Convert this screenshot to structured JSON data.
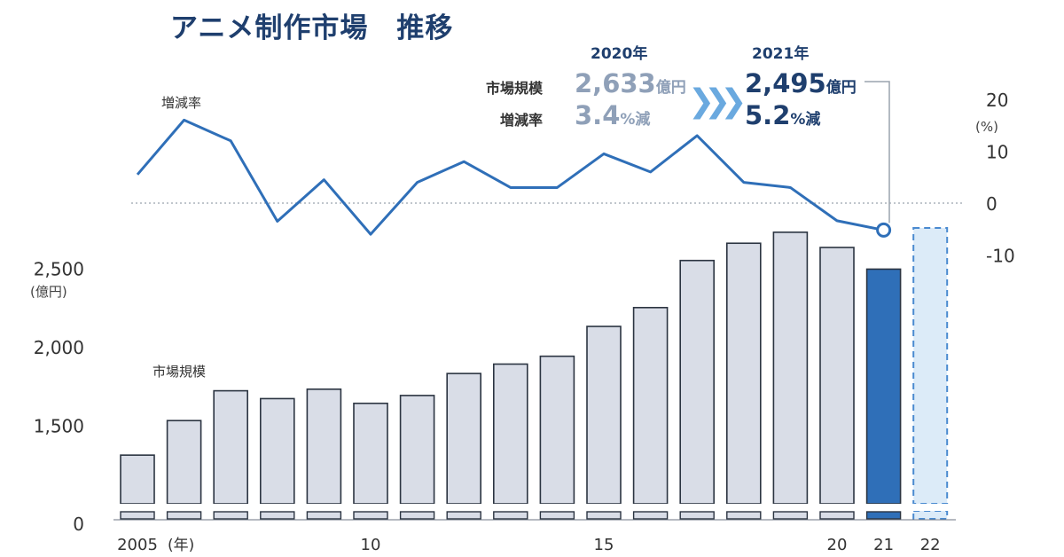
{
  "header": {
    "title": "アニメ制作市場　推移"
  },
  "comparison": {
    "rows": [
      "市場規模",
      "増減率"
    ],
    "prev": {
      "year": "2020年",
      "size": "2,633",
      "size_unit": "億円",
      "rate": "3.4",
      "rate_unit": "%減"
    },
    "curr": {
      "year": "2021年",
      "size": "2,495",
      "size_unit": "億円",
      "rate": "5.2",
      "rate_unit": "%減"
    },
    "arrow": "❯❯❯"
  },
  "chart_data": {
    "type": "bar+line",
    "categories": [
      "2005",
      "2006",
      "2007",
      "2008",
      "2009",
      "2010",
      "2011",
      "2012",
      "2013",
      "2014",
      "2015",
      "2016",
      "2017",
      "2018",
      "2019",
      "2020",
      "2021",
      "2022"
    ],
    "x_tick_labels": [
      {
        "index": 0,
        "label": "2005"
      },
      {
        "index": 5,
        "label": "10"
      },
      {
        "index": 10,
        "label": "15"
      },
      {
        "index": 15,
        "label": "20"
      },
      {
        "index": 16,
        "label": "21"
      },
      {
        "index": 17,
        "label": "22"
      }
    ],
    "x_unit": "(年)",
    "bars": {
      "name": "市場規模",
      "values": [
        1310,
        1530,
        1720,
        1670,
        1730,
        1640,
        1690,
        1830,
        1890,
        1940,
        2130,
        2250,
        2550,
        2660,
        2730,
        2633,
        2495,
        null
      ],
      "projected_index": 17,
      "highlight_index": 16
    },
    "line": {
      "name": "増減率",
      "values": [
        5.5,
        16,
        12,
        -3.5,
        4.5,
        -6,
        4,
        8,
        3,
        3,
        9.5,
        6,
        13,
        4,
        3,
        -3.4,
        -5.2
      ],
      "marker_index": 16
    },
    "left_axis": {
      "ticks": [
        {
          "value": 0,
          "label": "0"
        },
        {
          "value": 1500,
          "label": "1,500"
        },
        {
          "value": 2000,
          "label": "2,000"
        },
        {
          "value": 2500,
          "label": "2,500"
        }
      ],
      "unit": "(億円)",
      "broken": true
    },
    "right_axis": {
      "ticks": [
        {
          "value": 20,
          "label": "20"
        },
        {
          "value": 10,
          "label": "10"
        },
        {
          "value": 0,
          "label": "0"
        },
        {
          "value": -10,
          "label": "-10"
        }
      ],
      "unit": "(%)",
      "zero_line": "dotted"
    },
    "colors": {
      "bar": "#d9dde7",
      "bar_stroke": "#2b3441",
      "highlight_bar": "#2f6fb8",
      "projected_bar": "#dcebf8",
      "projected_stroke": "#4a8ad0",
      "line": "#2f6fb8",
      "tick_text": "#333333"
    }
  }
}
